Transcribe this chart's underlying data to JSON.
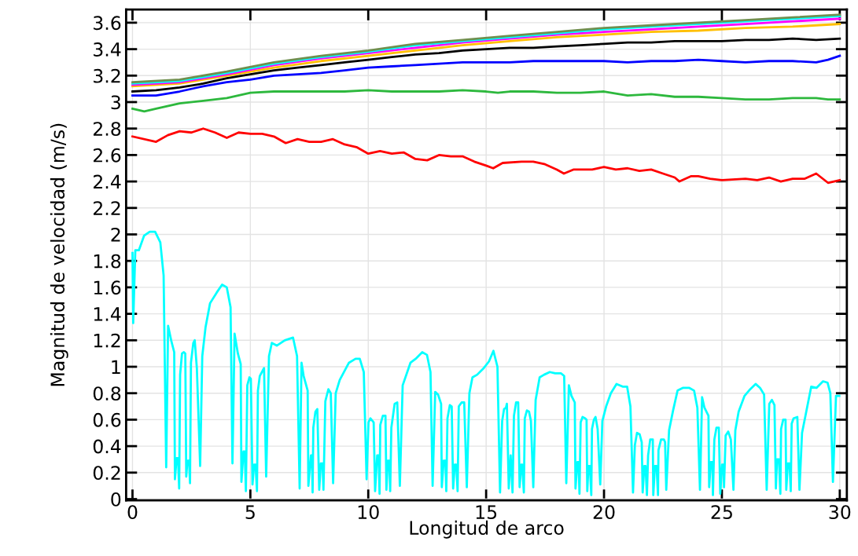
{
  "chart_data": {
    "type": "line",
    "xlabel": "Longitud de arco",
    "ylabel": "Magnitud de velocidad (m/s)",
    "xlim": [
      -0.27,
      30.3
    ],
    "ylim": [
      -0.01,
      3.7
    ],
    "xticks": [
      0,
      5,
      10,
      15,
      20,
      25,
      30
    ],
    "yticks": [
      0,
      0.2,
      0.4,
      0.6,
      0.8,
      1,
      1.2,
      1.4,
      1.6,
      1.8,
      2,
      2.2,
      2.4,
      2.6,
      2.8,
      3,
      3.2,
      3.4,
      3.6
    ],
    "grid": true,
    "legend": false,
    "marker": "none",
    "line_style": "solid",
    "series": [
      {
        "color": "#00ffff",
        "x": [
          0.0,
          0.03,
          0.12,
          0.27,
          0.49,
          0.73,
          0.96,
          1.18,
          1.32,
          1.43,
          1.51,
          1.64,
          1.77,
          1.8,
          1.87,
          1.93,
          1.98,
          2.02,
          2.1,
          2.18,
          2.24,
          2.28,
          2.33,
          2.4,
          2.44,
          2.48,
          2.58,
          2.64,
          2.73,
          2.87,
          2.96,
          3.1,
          3.29,
          3.57,
          3.8,
          4.0,
          4.16,
          4.24,
          4.33,
          4.47,
          4.59,
          4.62,
          4.71,
          4.76,
          4.81,
          4.87,
          4.96,
          5.02,
          5.09,
          5.16,
          5.22,
          5.28,
          5.32,
          5.4,
          5.58,
          5.67,
          5.79,
          5.91,
          6.12,
          6.46,
          6.81,
          6.98,
          7.09,
          7.17,
          7.26,
          7.43,
          7.46,
          7.57,
          7.61,
          7.64,
          7.67,
          7.76,
          7.84,
          7.92,
          7.99,
          8.06,
          8.1,
          8.18,
          8.31,
          8.41,
          8.51,
          8.62,
          8.79,
          9.18,
          9.46,
          9.64,
          9.81,
          9.93,
          10.01,
          10.09,
          10.23,
          10.29,
          10.38,
          10.44,
          10.48,
          10.51,
          10.62,
          10.73,
          10.77,
          10.83,
          10.89,
          10.93,
          10.98,
          11.12,
          11.23,
          11.34,
          11.46,
          11.79,
          12.01,
          12.29,
          12.49,
          12.64,
          12.73,
          12.84,
          12.96,
          13.09,
          13.12,
          13.2,
          13.27,
          13.31,
          13.36,
          13.46,
          13.54,
          13.6,
          13.67,
          13.73,
          13.79,
          13.84,
          13.96,
          14.07,
          14.18,
          14.29,
          14.42,
          14.62,
          14.9,
          15.12,
          15.31,
          15.48,
          15.59,
          15.68,
          15.76,
          15.84,
          15.88,
          15.96,
          16.04,
          16.12,
          16.18,
          16.27,
          16.36,
          16.42,
          16.49,
          16.53,
          16.6,
          16.64,
          16.73,
          16.82,
          16.9,
          17.0,
          17.1,
          17.27,
          17.46,
          17.7,
          17.93,
          18.18,
          18.31,
          18.4,
          18.51,
          18.62,
          18.76,
          18.79,
          18.87,
          18.92,
          18.96,
          19.01,
          19.09,
          19.2,
          19.26,
          19.29,
          19.34,
          19.4,
          19.46,
          19.49,
          19.57,
          19.64,
          19.73,
          19.84,
          19.93,
          20.09,
          20.29,
          20.53,
          20.79,
          20.98,
          21.12,
          21.23,
          21.31,
          21.4,
          21.51,
          21.6,
          21.64,
          21.71,
          21.76,
          21.82,
          21.87,
          21.96,
          22.07,
          22.09,
          22.16,
          22.23,
          22.29,
          22.31,
          22.42,
          22.54,
          22.59,
          22.64,
          22.76,
          22.93,
          23.12,
          23.34,
          23.62,
          23.82,
          23.96,
          24.07,
          24.16,
          24.26,
          24.43,
          24.46,
          24.53,
          24.6,
          24.62,
          24.68,
          24.77,
          24.87,
          24.93,
          25.01,
          25.07,
          25.09,
          25.16,
          25.27,
          25.38,
          25.49,
          25.57,
          25.71,
          25.96,
          26.2,
          26.43,
          26.62,
          26.79,
          26.9,
          27.01,
          27.12,
          27.23,
          27.29,
          27.34,
          27.42,
          27.48,
          27.51,
          27.6,
          27.7,
          27.73,
          27.8,
          27.87,
          27.92,
          27.96,
          28.04,
          28.2,
          28.29,
          28.4,
          28.6,
          28.79,
          29.01,
          29.29,
          29.48,
          29.6,
          29.71,
          29.84,
          29.98
        ],
        "values": [
          1.86,
          1.33,
          1.88,
          1.88,
          1.99,
          2.02,
          2.02,
          1.94,
          1.69,
          0.24,
          1.31,
          1.2,
          1.11,
          0.15,
          0.31,
          0.31,
          0.08,
          0.94,
          1.1,
          1.11,
          1.1,
          0.17,
          0.29,
          0.29,
          0.12,
          1.03,
          1.18,
          1.2,
          0.99,
          0.25,
          1.08,
          1.3,
          1.48,
          1.56,
          1.62,
          1.6,
          1.45,
          0.27,
          1.25,
          1.1,
          1.02,
          0.13,
          0.36,
          0.36,
          0.06,
          0.86,
          0.92,
          0.91,
          0.11,
          0.26,
          0.26,
          0.06,
          0.82,
          0.93,
          0.99,
          0.17,
          1.08,
          1.18,
          1.16,
          1.2,
          1.22,
          1.08,
          0.08,
          1.03,
          0.93,
          0.82,
          0.1,
          0.33,
          0.33,
          0.05,
          0.54,
          0.66,
          0.68,
          0.07,
          0.27,
          0.27,
          0.07,
          0.74,
          0.83,
          0.8,
          0.12,
          0.8,
          0.9,
          1.03,
          1.06,
          1.06,
          0.96,
          0.15,
          0.58,
          0.61,
          0.58,
          0.06,
          0.33,
          0.33,
          0.04,
          0.56,
          0.63,
          0.63,
          0.07,
          0.29,
          0.29,
          0.06,
          0.54,
          0.72,
          0.73,
          0.1,
          0.86,
          1.03,
          1.06,
          1.11,
          1.09,
          0.96,
          0.1,
          0.81,
          0.79,
          0.72,
          0.09,
          0.29,
          0.29,
          0.06,
          0.61,
          0.71,
          0.7,
          0.08,
          0.26,
          0.26,
          0.06,
          0.7,
          0.73,
          0.73,
          0.09,
          0.8,
          0.92,
          0.94,
          0.99,
          1.04,
          1.12,
          1.0,
          0.05,
          0.59,
          0.68,
          0.69,
          0.72,
          0.08,
          0.33,
          0.05,
          0.63,
          0.73,
          0.73,
          0.09,
          0.26,
          0.26,
          0.05,
          0.61,
          0.67,
          0.66,
          0.59,
          0.09,
          0.75,
          0.92,
          0.94,
          0.96,
          0.95,
          0.95,
          0.93,
          0.12,
          0.86,
          0.78,
          0.73,
          0.08,
          0.28,
          0.28,
          0.04,
          0.58,
          0.62,
          0.61,
          0.6,
          0.06,
          0.25,
          0.25,
          0.03,
          0.53,
          0.6,
          0.62,
          0.53,
          0.11,
          0.59,
          0.7,
          0.8,
          0.87,
          0.85,
          0.85,
          0.7,
          0.05,
          0.41,
          0.5,
          0.49,
          0.43,
          0.05,
          0.25,
          0.25,
          0.03,
          0.33,
          0.45,
          0.45,
          0.03,
          0.25,
          0.25,
          0.03,
          0.37,
          0.45,
          0.45,
          0.43,
          0.07,
          0.52,
          0.67,
          0.82,
          0.84,
          0.84,
          0.82,
          0.69,
          0.07,
          0.77,
          0.69,
          0.63,
          0.09,
          0.28,
          0.28,
          0.03,
          0.45,
          0.54,
          0.54,
          0.04,
          0.26,
          0.26,
          0.09,
          0.48,
          0.51,
          0.45,
          0.07,
          0.52,
          0.66,
          0.78,
          0.83,
          0.87,
          0.84,
          0.79,
          0.07,
          0.72,
          0.75,
          0.71,
          0.08,
          0.3,
          0.3,
          0.04,
          0.53,
          0.6,
          0.6,
          0.07,
          0.27,
          0.27,
          0.06,
          0.57,
          0.61,
          0.62,
          0.07,
          0.5,
          0.68,
          0.85,
          0.84,
          0.89,
          0.88,
          0.8,
          0.13,
          0.78,
          0.78
        ]
      },
      {
        "color": "#ff0000",
        "x": [
          0,
          1,
          1.5,
          2,
          2.5,
          3,
          3.5,
          4,
          4.5,
          5,
          5.5,
          6,
          6.5,
          7,
          7.5,
          8,
          8.5,
          9,
          9.5,
          10,
          10.5,
          11,
          11.5,
          12,
          12.5,
          13,
          13.5,
          14,
          14.5,
          15,
          15.3,
          15.7,
          16.5,
          17,
          17.5,
          18,
          18.3,
          18.7,
          19.5,
          20,
          20.5,
          21,
          21.5,
          22,
          22.5,
          23,
          23.2,
          23.7,
          24,
          24.5,
          25,
          26,
          26.5,
          27,
          27.5,
          28,
          28.5,
          29,
          29.5,
          30
        ],
        "values": [
          2.74,
          2.7,
          2.75,
          2.78,
          2.77,
          2.8,
          2.77,
          2.73,
          2.77,
          2.76,
          2.76,
          2.74,
          2.69,
          2.72,
          2.7,
          2.7,
          2.72,
          2.68,
          2.66,
          2.61,
          2.63,
          2.61,
          2.62,
          2.57,
          2.56,
          2.6,
          2.59,
          2.59,
          2.55,
          2.52,
          2.5,
          2.54,
          2.55,
          2.55,
          2.53,
          2.49,
          2.46,
          2.49,
          2.49,
          2.51,
          2.49,
          2.5,
          2.48,
          2.49,
          2.46,
          2.43,
          2.4,
          2.44,
          2.44,
          2.42,
          2.41,
          2.42,
          2.41,
          2.43,
          2.4,
          2.42,
          2.42,
          2.46,
          2.39,
          2.41
        ]
      },
      {
        "color": "#2db83d",
        "x": [
          0,
          0.5,
          1,
          2,
          3,
          4,
          5,
          6,
          7,
          8,
          9,
          10,
          11,
          12,
          13,
          14,
          15,
          15.5,
          16,
          17,
          18,
          19,
          20,
          21,
          22,
          23,
          24,
          25,
          26,
          27,
          28,
          29,
          29.5,
          30
        ],
        "values": [
          2.95,
          2.93,
          2.95,
          2.99,
          3.01,
          3.03,
          3.07,
          3.08,
          3.08,
          3.08,
          3.08,
          3.09,
          3.08,
          3.08,
          3.08,
          3.09,
          3.08,
          3.07,
          3.08,
          3.08,
          3.07,
          3.07,
          3.08,
          3.05,
          3.06,
          3.04,
          3.04,
          3.03,
          3.02,
          3.02,
          3.03,
          3.03,
          3.02,
          3.02
        ]
      },
      {
        "color": "#0000ff",
        "x": [
          0,
          1,
          2,
          3,
          4,
          5,
          6,
          7,
          8,
          9,
          10,
          11,
          12,
          13,
          14,
          15,
          16,
          17,
          18,
          19,
          20,
          21,
          22,
          23,
          24,
          25,
          26,
          27,
          28,
          29,
          29.5,
          30
        ],
        "values": [
          3.05,
          3.05,
          3.08,
          3.12,
          3.15,
          3.17,
          3.2,
          3.21,
          3.22,
          3.24,
          3.26,
          3.27,
          3.28,
          3.29,
          3.3,
          3.3,
          3.3,
          3.31,
          3.31,
          3.31,
          3.31,
          3.3,
          3.31,
          3.31,
          3.32,
          3.31,
          3.3,
          3.31,
          3.31,
          3.3,
          3.32,
          3.35
        ]
      },
      {
        "color": "#000000",
        "x": [
          0,
          1,
          2,
          3,
          4,
          5,
          6,
          7,
          8,
          9,
          10,
          11,
          12,
          13,
          14,
          15,
          16,
          17,
          18,
          19,
          20,
          21,
          22,
          23,
          24,
          25,
          26,
          27,
          28,
          29,
          30
        ],
        "values": [
          3.08,
          3.09,
          3.11,
          3.14,
          3.18,
          3.21,
          3.24,
          3.26,
          3.28,
          3.3,
          3.32,
          3.34,
          3.36,
          3.37,
          3.39,
          3.4,
          3.41,
          3.41,
          3.42,
          3.43,
          3.44,
          3.45,
          3.45,
          3.46,
          3.46,
          3.46,
          3.47,
          3.47,
          3.48,
          3.47,
          3.48
        ]
      },
      {
        "color": "#ffbf00",
        "x": [
          0,
          2,
          4,
          6,
          8,
          10,
          12,
          14,
          16,
          18,
          20,
          22,
          24,
          26,
          28,
          30
        ],
        "values": [
          3.12,
          3.14,
          3.2,
          3.26,
          3.31,
          3.35,
          3.39,
          3.43,
          3.46,
          3.49,
          3.51,
          3.53,
          3.54,
          3.56,
          3.57,
          3.59
        ]
      },
      {
        "color": "#ff00ff",
        "x": [
          0,
          2,
          4,
          6,
          8,
          10,
          12,
          14,
          16,
          18,
          20,
          22,
          24,
          26,
          28,
          30
        ],
        "values": [
          3.13,
          3.15,
          3.21,
          3.28,
          3.33,
          3.37,
          3.41,
          3.45,
          3.48,
          3.51,
          3.53,
          3.55,
          3.57,
          3.59,
          3.61,
          3.63
        ]
      },
      {
        "color": "#00ffff",
        "x": [
          0,
          2,
          4,
          6,
          8,
          10,
          12,
          14,
          16,
          18,
          20,
          22,
          24,
          26,
          28,
          30
        ],
        "values": [
          3.14,
          3.16,
          3.22,
          3.29,
          3.34,
          3.38,
          3.43,
          3.46,
          3.49,
          3.52,
          3.55,
          3.57,
          3.59,
          3.61,
          3.63,
          3.65
        ]
      },
      {
        "color": "#6f8f4f",
        "x": [
          0,
          2,
          4,
          6,
          8,
          10,
          12,
          14,
          16,
          18,
          20,
          22,
          24,
          26,
          28,
          30
        ],
        "values": [
          3.15,
          3.17,
          3.23,
          3.3,
          3.35,
          3.39,
          3.44,
          3.47,
          3.5,
          3.53,
          3.56,
          3.58,
          3.6,
          3.62,
          3.64,
          3.66
        ]
      }
    ]
  }
}
